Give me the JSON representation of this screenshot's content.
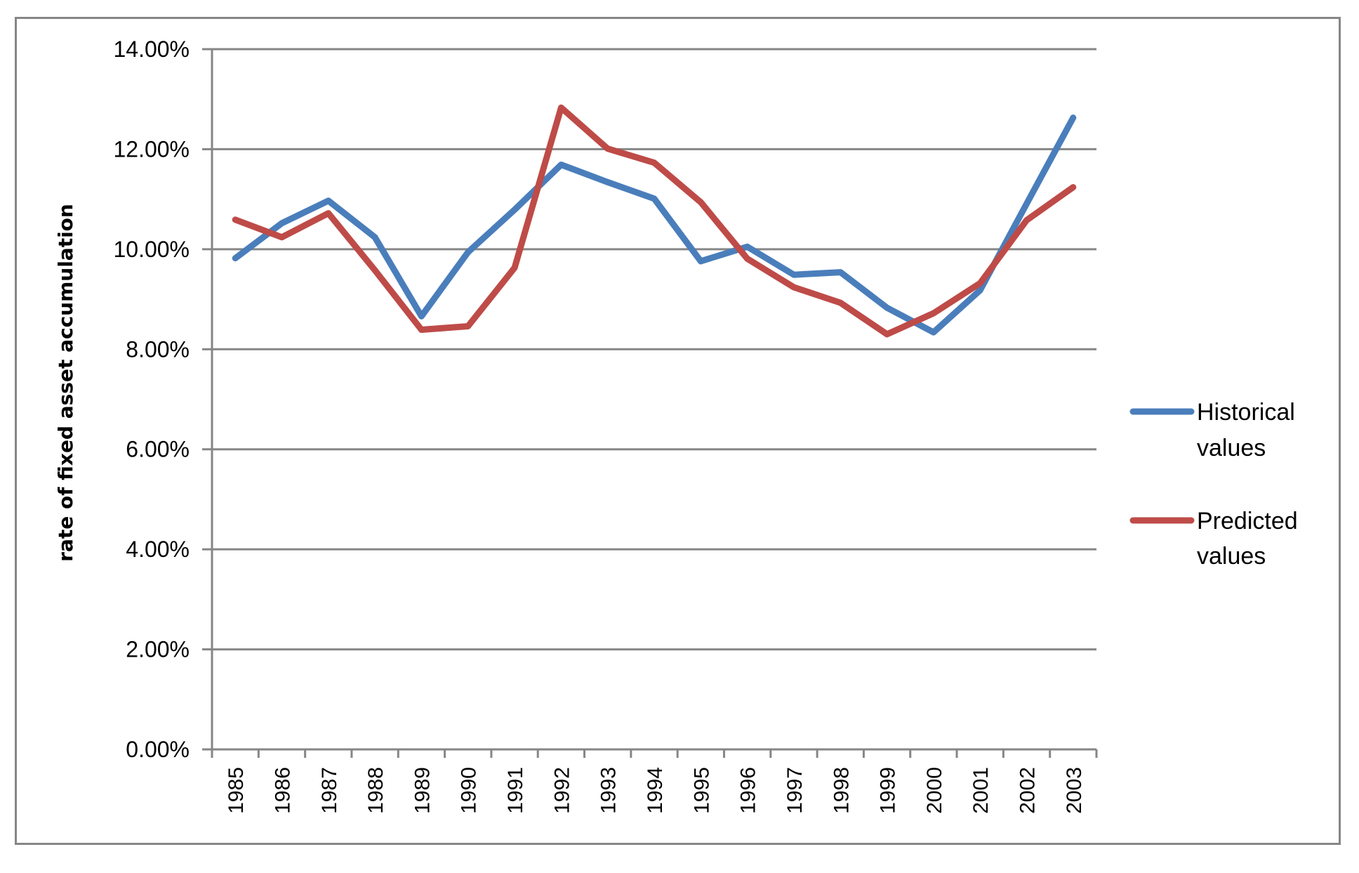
{
  "chart_data": {
    "type": "line",
    "title": "",
    "xlabel": "",
    "ylabel": "rate of fixed asset accumulation",
    "ylim": [
      0,
      0.14
    ],
    "ytick_labels": [
      "0.00%",
      "2.00%",
      "4.00%",
      "6.00%",
      "8.00%",
      "10.00%",
      "12.00%",
      "14.00%"
    ],
    "yticks": [
      0,
      0.02,
      0.04,
      0.06,
      0.08,
      0.1,
      0.12,
      0.14
    ],
    "grid": "horizontal",
    "legend_position": "right",
    "categories": [
      "1985",
      "1986",
      "1987",
      "1988",
      "1989",
      "1990",
      "1991",
      "1992",
      "1993",
      "1994",
      "1995",
      "1996",
      "1997",
      "1998",
      "1999",
      "2000",
      "2001",
      "2002",
      "2003"
    ],
    "series": [
      {
        "name": "Historical values",
        "color": "#4A7EBB",
        "values": [
          0.0982,
          0.1052,
          0.1097,
          0.1024,
          0.0866,
          0.0994,
          0.1079,
          0.1169,
          0.1134,
          0.1101,
          0.0976,
          0.1005,
          0.0949,
          0.0954,
          0.0883,
          0.0834,
          0.0918,
          0.1091,
          0.1263
        ]
      },
      {
        "name": "Predicted values",
        "color": "#BE4B48",
        "values": [
          0.1059,
          0.1024,
          0.1072,
          0.0958,
          0.0839,
          0.0846,
          0.0963,
          0.1283,
          0.1201,
          0.1173,
          0.1094,
          0.0981,
          0.0924,
          0.0893,
          0.083,
          0.0872,
          0.0932,
          0.1058,
          0.1124
        ]
      }
    ]
  },
  "legend": {
    "items": [
      {
        "line1": "Historical",
        "line2": "values",
        "color": "#4A7EBB"
      },
      {
        "line1": "Predicted",
        "line2": "values",
        "color": "#BE4B48"
      }
    ]
  },
  "colors": {
    "axis": "#868686",
    "grid": "#868686",
    "frame": "#868686"
  }
}
